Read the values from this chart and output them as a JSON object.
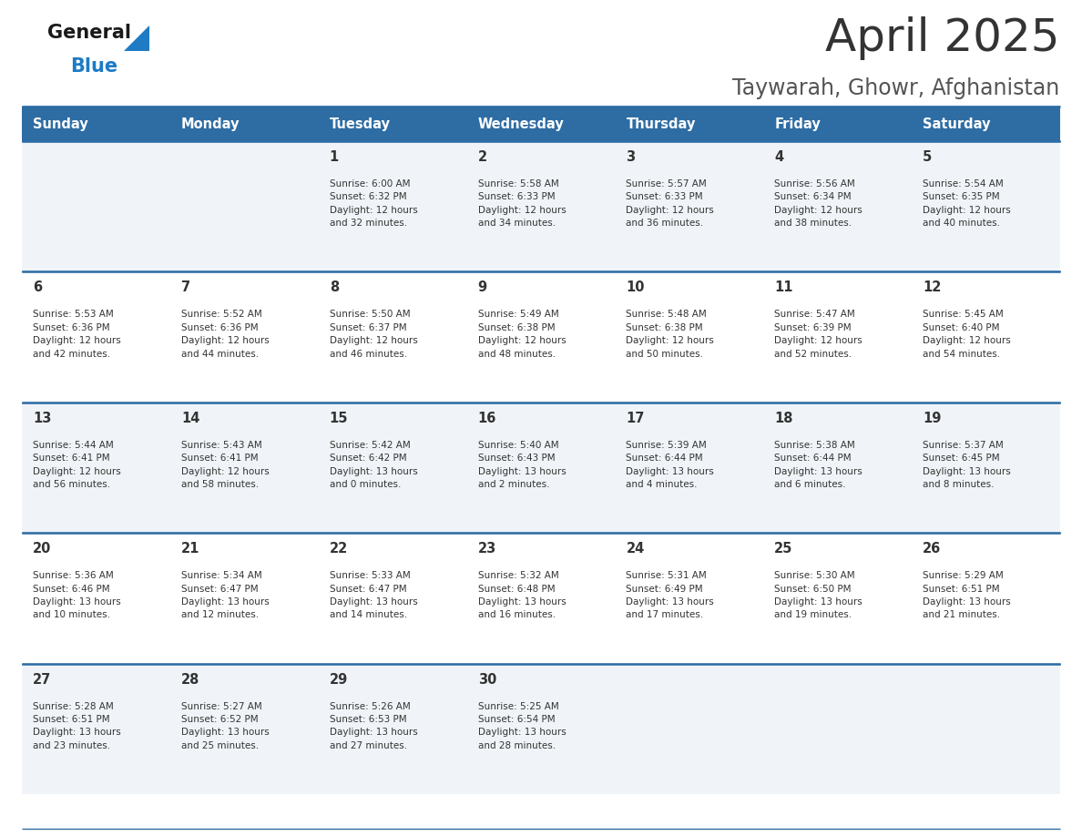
{
  "title": "April 2025",
  "subtitle": "Taywarah, Ghowr, Afghanistan",
  "days_of_week": [
    "Sunday",
    "Monday",
    "Tuesday",
    "Wednesday",
    "Thursday",
    "Friday",
    "Saturday"
  ],
  "header_bg": "#2E6DA4",
  "header_text": "#FFFFFF",
  "row_bg_even": "#F0F4F8",
  "row_bg_odd": "#FFFFFF",
  "border_color": "#2E6DA4",
  "text_color": "#333333",
  "title_color": "#333333",
  "subtitle_color": "#555555",
  "logo_general_color": "#1a1a1a",
  "logo_blue_color": "#1E7BC4",
  "calendar": [
    [
      {
        "day": null,
        "info": ""
      },
      {
        "day": null,
        "info": ""
      },
      {
        "day": 1,
        "info": "Sunrise: 6:00 AM\nSunset: 6:32 PM\nDaylight: 12 hours\nand 32 minutes."
      },
      {
        "day": 2,
        "info": "Sunrise: 5:58 AM\nSunset: 6:33 PM\nDaylight: 12 hours\nand 34 minutes."
      },
      {
        "day": 3,
        "info": "Sunrise: 5:57 AM\nSunset: 6:33 PM\nDaylight: 12 hours\nand 36 minutes."
      },
      {
        "day": 4,
        "info": "Sunrise: 5:56 AM\nSunset: 6:34 PM\nDaylight: 12 hours\nand 38 minutes."
      },
      {
        "day": 5,
        "info": "Sunrise: 5:54 AM\nSunset: 6:35 PM\nDaylight: 12 hours\nand 40 minutes."
      }
    ],
    [
      {
        "day": 6,
        "info": "Sunrise: 5:53 AM\nSunset: 6:36 PM\nDaylight: 12 hours\nand 42 minutes."
      },
      {
        "day": 7,
        "info": "Sunrise: 5:52 AM\nSunset: 6:36 PM\nDaylight: 12 hours\nand 44 minutes."
      },
      {
        "day": 8,
        "info": "Sunrise: 5:50 AM\nSunset: 6:37 PM\nDaylight: 12 hours\nand 46 minutes."
      },
      {
        "day": 9,
        "info": "Sunrise: 5:49 AM\nSunset: 6:38 PM\nDaylight: 12 hours\nand 48 minutes."
      },
      {
        "day": 10,
        "info": "Sunrise: 5:48 AM\nSunset: 6:38 PM\nDaylight: 12 hours\nand 50 minutes."
      },
      {
        "day": 11,
        "info": "Sunrise: 5:47 AM\nSunset: 6:39 PM\nDaylight: 12 hours\nand 52 minutes."
      },
      {
        "day": 12,
        "info": "Sunrise: 5:45 AM\nSunset: 6:40 PM\nDaylight: 12 hours\nand 54 minutes."
      }
    ],
    [
      {
        "day": 13,
        "info": "Sunrise: 5:44 AM\nSunset: 6:41 PM\nDaylight: 12 hours\nand 56 minutes."
      },
      {
        "day": 14,
        "info": "Sunrise: 5:43 AM\nSunset: 6:41 PM\nDaylight: 12 hours\nand 58 minutes."
      },
      {
        "day": 15,
        "info": "Sunrise: 5:42 AM\nSunset: 6:42 PM\nDaylight: 13 hours\nand 0 minutes."
      },
      {
        "day": 16,
        "info": "Sunrise: 5:40 AM\nSunset: 6:43 PM\nDaylight: 13 hours\nand 2 minutes."
      },
      {
        "day": 17,
        "info": "Sunrise: 5:39 AM\nSunset: 6:44 PM\nDaylight: 13 hours\nand 4 minutes."
      },
      {
        "day": 18,
        "info": "Sunrise: 5:38 AM\nSunset: 6:44 PM\nDaylight: 13 hours\nand 6 minutes."
      },
      {
        "day": 19,
        "info": "Sunrise: 5:37 AM\nSunset: 6:45 PM\nDaylight: 13 hours\nand 8 minutes."
      }
    ],
    [
      {
        "day": 20,
        "info": "Sunrise: 5:36 AM\nSunset: 6:46 PM\nDaylight: 13 hours\nand 10 minutes."
      },
      {
        "day": 21,
        "info": "Sunrise: 5:34 AM\nSunset: 6:47 PM\nDaylight: 13 hours\nand 12 minutes."
      },
      {
        "day": 22,
        "info": "Sunrise: 5:33 AM\nSunset: 6:47 PM\nDaylight: 13 hours\nand 14 minutes."
      },
      {
        "day": 23,
        "info": "Sunrise: 5:32 AM\nSunset: 6:48 PM\nDaylight: 13 hours\nand 16 minutes."
      },
      {
        "day": 24,
        "info": "Sunrise: 5:31 AM\nSunset: 6:49 PM\nDaylight: 13 hours\nand 17 minutes."
      },
      {
        "day": 25,
        "info": "Sunrise: 5:30 AM\nSunset: 6:50 PM\nDaylight: 13 hours\nand 19 minutes."
      },
      {
        "day": 26,
        "info": "Sunrise: 5:29 AM\nSunset: 6:51 PM\nDaylight: 13 hours\nand 21 minutes."
      }
    ],
    [
      {
        "day": 27,
        "info": "Sunrise: 5:28 AM\nSunset: 6:51 PM\nDaylight: 13 hours\nand 23 minutes."
      },
      {
        "day": 28,
        "info": "Sunrise: 5:27 AM\nSunset: 6:52 PM\nDaylight: 13 hours\nand 25 minutes."
      },
      {
        "day": 29,
        "info": "Sunrise: 5:26 AM\nSunset: 6:53 PM\nDaylight: 13 hours\nand 27 minutes."
      },
      {
        "day": 30,
        "info": "Sunrise: 5:25 AM\nSunset: 6:54 PM\nDaylight: 13 hours\nand 28 minutes."
      },
      {
        "day": null,
        "info": ""
      },
      {
        "day": null,
        "info": ""
      },
      {
        "day": null,
        "info": ""
      }
    ]
  ]
}
